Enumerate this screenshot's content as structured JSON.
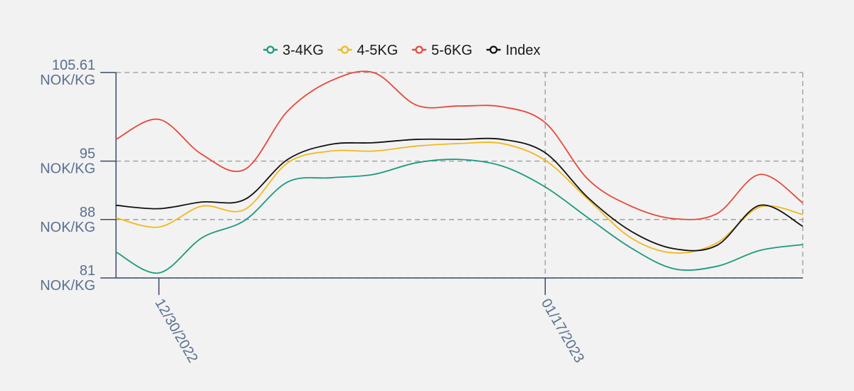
{
  "chart_data": {
    "type": "line",
    "title": "",
    "xlabel": "",
    "ylabel": "",
    "x": [
      "12/28/2022",
      "12/30/2022",
      "01/01/2023",
      "01/03/2023",
      "01/05/2023",
      "01/07/2023",
      "01/09/2023",
      "01/11/2023",
      "01/13/2023",
      "01/15/2023",
      "01/17/2023",
      "01/19/2023",
      "01/21/2023",
      "01/23/2023",
      "01/25/2023",
      "01/27/2023",
      "01/29/2023"
    ],
    "x_tick_labels": [
      "12/30/2022",
      "01/17/2023"
    ],
    "y_ticks": [
      {
        "value": 105.61,
        "label": "105.61",
        "unit": "NOK/KG"
      },
      {
        "value": 95,
        "label": "95",
        "unit": "NOK/KG"
      },
      {
        "value": 88,
        "label": "88",
        "unit": "NOK/KG"
      },
      {
        "value": 81,
        "label": "81",
        "unit": "NOK/KG"
      }
    ],
    "ylim": [
      81,
      105.61
    ],
    "grid": true,
    "legend_position": "top-center",
    "series": [
      {
        "name": "3-4KG",
        "color": "#1a9a7e",
        "values": [
          84.1,
          81.6,
          85.8,
          87.9,
          92.5,
          93.0,
          93.4,
          94.8,
          95.2,
          94.4,
          91.9,
          88.2,
          84.6,
          82.1,
          82.4,
          84.3,
          85.0
        ]
      },
      {
        "name": "4-5KG",
        "color": "#f2b91c",
        "values": [
          88.2,
          87.1,
          89.6,
          89.2,
          94.8,
          96.2,
          96.2,
          96.8,
          97.1,
          97.1,
          95.1,
          90.4,
          85.8,
          84.0,
          85.2,
          89.5,
          88.6
        ]
      },
      {
        "name": "5-6KG",
        "color": "#e8483b",
        "values": [
          97.6,
          100.0,
          95.8,
          94.0,
          101.0,
          104.6,
          105.6,
          101.7,
          101.6,
          101.5,
          99.6,
          92.8,
          89.6,
          88.1,
          88.7,
          93.4,
          90.0
        ]
      },
      {
        "name": "Index",
        "color": "#111111",
        "values": [
          89.7,
          89.3,
          90.1,
          90.4,
          95.2,
          97.0,
          97.2,
          97.6,
          97.6,
          97.6,
          96.0,
          90.6,
          86.6,
          84.5,
          84.9,
          89.7,
          87.2
        ]
      }
    ]
  }
}
